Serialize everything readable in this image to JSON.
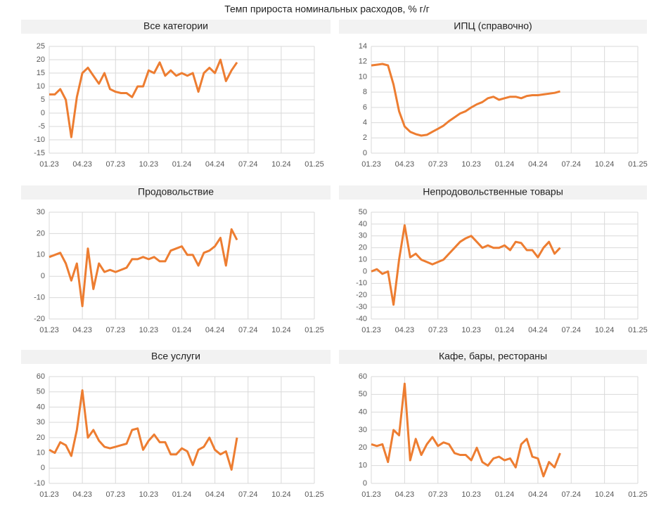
{
  "title": "Темп прироста номинальных расходов, % г/г",
  "chart_data": [
    {
      "type": "line",
      "title": "Все категории",
      "x": [
        0,
        0.5,
        1,
        1.5,
        2,
        2.5,
        3,
        3.5,
        4,
        4.5,
        5,
        5.5,
        6,
        6.5,
        7,
        7.5,
        8,
        8.5,
        9,
        9.5,
        10,
        10.5,
        11,
        11.5,
        12,
        12.5,
        13,
        13.5,
        14,
        14.5,
        15,
        15.5,
        16,
        16.5,
        17
      ],
      "xlim": [
        0,
        24
      ],
      "xticks": [
        {
          "value": 0,
          "label": "01.23"
        },
        {
          "value": 3,
          "label": "04.23"
        },
        {
          "value": 6,
          "label": "07.23"
        },
        {
          "value": 9,
          "label": "10.23"
        },
        {
          "value": 12,
          "label": "01.24"
        },
        {
          "value": 15,
          "label": "04.24"
        },
        {
          "value": 18,
          "label": "07.24"
        },
        {
          "value": 21,
          "label": "10.24"
        },
        {
          "value": 24,
          "label": "01.25"
        }
      ],
      "ylim": [
        -15,
        25
      ],
      "yticks": [
        -15,
        -10,
        -5,
        0,
        5,
        10,
        15,
        20,
        25
      ],
      "grid": true,
      "series": [
        {
          "color": "#ed7d31",
          "values": [
            7,
            7,
            9,
            5,
            -9,
            6,
            15,
            17,
            14,
            11,
            15,
            9,
            8,
            7.5,
            7.5,
            6,
            10,
            10,
            16,
            15,
            19,
            14,
            16,
            14,
            15,
            14,
            15,
            8,
            15,
            17,
            15,
            20,
            12,
            16,
            19
          ]
        }
      ]
    },
    {
      "type": "line",
      "title": "ИПЦ (справочно)",
      "x": [
        0,
        0.5,
        1,
        1.5,
        2,
        2.5,
        3,
        3.5,
        4,
        4.5,
        5,
        5.5,
        6,
        6.5,
        7,
        7.5,
        8,
        8.5,
        9,
        9.5,
        10,
        10.5,
        11,
        11.5,
        12,
        12.5,
        13,
        13.5,
        14,
        14.5,
        15,
        15.5,
        16,
        16.5,
        17
      ],
      "xlim": [
        0,
        24
      ],
      "xticks": [
        {
          "value": 0,
          "label": "01.23"
        },
        {
          "value": 3,
          "label": "04.23"
        },
        {
          "value": 6,
          "label": "07.23"
        },
        {
          "value": 9,
          "label": "10.23"
        },
        {
          "value": 12,
          "label": "01.24"
        },
        {
          "value": 15,
          "label": "04.24"
        },
        {
          "value": 18,
          "label": "07.24"
        },
        {
          "value": 21,
          "label": "10.24"
        },
        {
          "value": 24,
          "label": "01.25"
        }
      ],
      "ylim": [
        0,
        14
      ],
      "yticks": [
        0,
        2,
        4,
        6,
        8,
        10,
        12,
        14
      ],
      "grid": true,
      "series": [
        {
          "color": "#ed7d31",
          "values": [
            11.5,
            11.6,
            11.7,
            11.5,
            9,
            5.5,
            3.5,
            2.8,
            2.5,
            2.3,
            2.4,
            2.8,
            3.2,
            3.6,
            4.2,
            4.7,
            5.2,
            5.5,
            6,
            6.4,
            6.7,
            7.2,
            7.4,
            7.0,
            7.2,
            7.4,
            7.4,
            7.2,
            7.5,
            7.6,
            7.6,
            7.7,
            7.8,
            7.9,
            8.1
          ]
        }
      ]
    },
    {
      "type": "line",
      "title": "Продовольствие",
      "x": [
        0,
        0.5,
        1,
        1.5,
        2,
        2.5,
        3,
        3.5,
        4,
        4.5,
        5,
        5.5,
        6,
        6.5,
        7,
        7.5,
        8,
        8.5,
        9,
        9.5,
        10,
        10.5,
        11,
        11.5,
        12,
        12.5,
        13,
        13.5,
        14,
        14.5,
        15,
        15.5,
        16,
        16.5,
        17
      ],
      "xlim": [
        0,
        24
      ],
      "xticks": [
        {
          "value": 0,
          "label": "01.23"
        },
        {
          "value": 3,
          "label": "04.23"
        },
        {
          "value": 6,
          "label": "07.23"
        },
        {
          "value": 9,
          "label": "10.23"
        },
        {
          "value": 12,
          "label": "01.24"
        },
        {
          "value": 15,
          "label": "04.24"
        },
        {
          "value": 18,
          "label": "07.24"
        },
        {
          "value": 21,
          "label": "10.24"
        },
        {
          "value": 24,
          "label": "01.25"
        }
      ],
      "ylim": [
        -20,
        30
      ],
      "yticks": [
        -20,
        -10,
        0,
        10,
        20,
        30
      ],
      "grid": true,
      "series": [
        {
          "color": "#ed7d31",
          "values": [
            9,
            10,
            11,
            6,
            -2,
            6,
            -14,
            13,
            -6,
            6,
            2,
            3,
            2,
            3,
            4,
            8,
            8,
            9,
            8,
            9,
            7,
            7,
            12,
            13,
            14,
            10,
            10,
            5,
            11,
            12,
            14,
            18,
            5,
            22,
            17
          ]
        }
      ]
    },
    {
      "type": "line",
      "title": "Непродовольственные товары",
      "x": [
        0,
        0.5,
        1,
        1.5,
        2,
        2.5,
        3,
        3.5,
        4,
        4.5,
        5,
        5.5,
        6,
        6.5,
        7,
        7.5,
        8,
        8.5,
        9,
        9.5,
        10,
        10.5,
        11,
        11.5,
        12,
        12.5,
        13,
        13.5,
        14,
        14.5,
        15,
        15.5,
        16,
        16.5,
        17
      ],
      "xlim": [
        0,
        24
      ],
      "xticks": [
        {
          "value": 0,
          "label": "01.23"
        },
        {
          "value": 3,
          "label": "04.23"
        },
        {
          "value": 6,
          "label": "07.23"
        },
        {
          "value": 9,
          "label": "10.23"
        },
        {
          "value": 12,
          "label": "01.24"
        },
        {
          "value": 15,
          "label": "04.24"
        },
        {
          "value": 18,
          "label": "07.24"
        },
        {
          "value": 21,
          "label": "10.24"
        },
        {
          "value": 24,
          "label": "01.25"
        }
      ],
      "ylim": [
        -40,
        50
      ],
      "yticks": [
        -40,
        -30,
        -20,
        -10,
        0,
        10,
        20,
        30,
        40,
        50
      ],
      "grid": true,
      "series": [
        {
          "color": "#ed7d31",
          "values": [
            0,
            2,
            -2,
            0,
            -28,
            10,
            39,
            12,
            15,
            10,
            8,
            6,
            8,
            10,
            15,
            20,
            25,
            28,
            30,
            25,
            20,
            22,
            20,
            20,
            22,
            18,
            25,
            24,
            18,
            18,
            12,
            20,
            25,
            15,
            20
          ]
        }
      ]
    },
    {
      "type": "line",
      "title": "Все услуги",
      "x": [
        0,
        0.5,
        1,
        1.5,
        2,
        2.5,
        3,
        3.5,
        4,
        4.5,
        5,
        5.5,
        6,
        6.5,
        7,
        7.5,
        8,
        8.5,
        9,
        9.5,
        10,
        10.5,
        11,
        11.5,
        12,
        12.5,
        13,
        13.5,
        14,
        14.5,
        15,
        15.5,
        16,
        16.5,
        17
      ],
      "xlim": [
        0,
        24
      ],
      "xticks": [
        {
          "value": 0,
          "label": "01.23"
        },
        {
          "value": 3,
          "label": "04.23"
        },
        {
          "value": 6,
          "label": "07.23"
        },
        {
          "value": 9,
          "label": "10.23"
        },
        {
          "value": 12,
          "label": "01.24"
        },
        {
          "value": 15,
          "label": "04.24"
        },
        {
          "value": 18,
          "label": "07.24"
        },
        {
          "value": 21,
          "label": "10.24"
        },
        {
          "value": 24,
          "label": "01.25"
        }
      ],
      "ylim": [
        -10,
        60
      ],
      "yticks": [
        -10,
        0,
        10,
        20,
        30,
        40,
        50,
        60
      ],
      "grid": true,
      "series": [
        {
          "color": "#ed7d31",
          "values": [
            12,
            10,
            17,
            15,
            8,
            25,
            51,
            20,
            25,
            18,
            14,
            13,
            14,
            15,
            16,
            25,
            26,
            12,
            18,
            22,
            17,
            17,
            9,
            9,
            13,
            11,
            2,
            12,
            14,
            20,
            12,
            9,
            11,
            -1,
            20
          ]
        }
      ]
    },
    {
      "type": "line",
      "title": "Кафе, бары, рестораны",
      "x": [
        0,
        0.5,
        1,
        1.5,
        2,
        2.5,
        3,
        3.5,
        4,
        4.5,
        5,
        5.5,
        6,
        6.5,
        7,
        7.5,
        8,
        8.5,
        9,
        9.5,
        10,
        10.5,
        11,
        11.5,
        12,
        12.5,
        13,
        13.5,
        14,
        14.5,
        15,
        15.5,
        16,
        16.5,
        17
      ],
      "xlim": [
        0,
        24
      ],
      "xticks": [
        {
          "value": 0,
          "label": "01.23"
        },
        {
          "value": 3,
          "label": "04.23"
        },
        {
          "value": 6,
          "label": "07.23"
        },
        {
          "value": 9,
          "label": "10.23"
        },
        {
          "value": 12,
          "label": "01.24"
        },
        {
          "value": 15,
          "label": "04.24"
        },
        {
          "value": 18,
          "label": "07.24"
        },
        {
          "value": 21,
          "label": "10.24"
        },
        {
          "value": 24,
          "label": "01.25"
        }
      ],
      "ylim": [
        0,
        60
      ],
      "yticks": [
        0,
        10,
        20,
        30,
        40,
        50,
        60
      ],
      "grid": true,
      "series": [
        {
          "color": "#ed7d31",
          "values": [
            22,
            21,
            22,
            12,
            30,
            27,
            56,
            13,
            25,
            16,
            22,
            26,
            21,
            23,
            22,
            17,
            16,
            16,
            13,
            20,
            12,
            10,
            14,
            15,
            13,
            14,
            9,
            22,
            25,
            15,
            14,
            4,
            12,
            9,
            17
          ]
        }
      ]
    }
  ]
}
